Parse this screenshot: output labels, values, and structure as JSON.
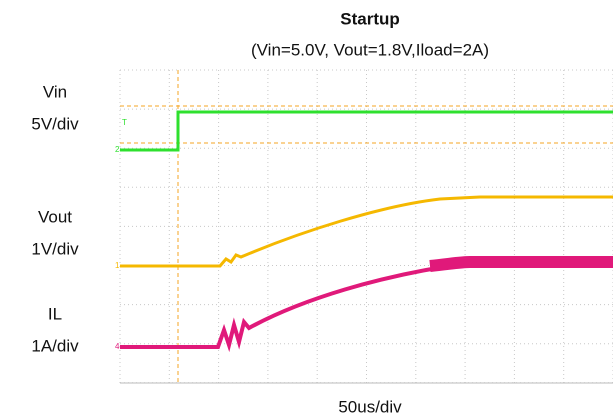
{
  "header": {
    "title": "Startup",
    "subtitle": "(Vin=5.0V, Vout=1.8V,Iload=2A)"
  },
  "channels": [
    {
      "name": "Vin",
      "scale": "5V/div",
      "marker": "2"
    },
    {
      "name": "Vout",
      "scale": "1V/div",
      "marker": "1"
    },
    {
      "name": "IL",
      "scale": "1A/div",
      "marker": "4"
    }
  ],
  "trigger_marker": "T",
  "time_scale": "50us/div"
}
